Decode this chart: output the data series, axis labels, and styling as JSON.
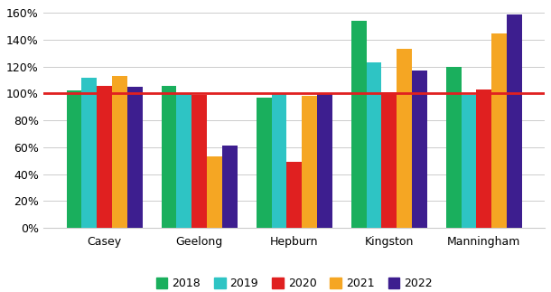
{
  "categories": [
    "Casey",
    "Geelong",
    "Hepburn",
    "Kingston",
    "Manningham"
  ],
  "years": [
    "2018",
    "2019",
    "2020",
    "2021",
    "2022"
  ],
  "values": {
    "2018": [
      1.02,
      1.06,
      0.97,
      1.54,
      1.2
    ],
    "2019": [
      1.12,
      1.0,
      1.0,
      1.23,
      0.99
    ],
    "2020": [
      1.06,
      0.99,
      0.49,
      1.01,
      1.03
    ],
    "2021": [
      1.13,
      0.53,
      0.98,
      1.33,
      1.45
    ],
    "2022": [
      1.05,
      0.61,
      1.0,
      1.17,
      1.59
    ]
  },
  "colors": {
    "2018": "#1AAF5D",
    "2019": "#2EC4C4",
    "2020": "#E02020",
    "2021": "#F5A623",
    "2022": "#3D1E8F"
  },
  "target_line": 1.0,
  "target_line_color": "#E02020",
  "ylim": [
    0,
    1.65
  ],
  "yticks": [
    0.0,
    0.2,
    0.4,
    0.6,
    0.8,
    1.0,
    1.2,
    1.4,
    1.6
  ],
  "background_color": "#FFFFFF",
  "grid_color": "#CCCCCC",
  "bar_width": 0.16,
  "figsize": [
    6.1,
    3.23
  ],
  "dpi": 100
}
